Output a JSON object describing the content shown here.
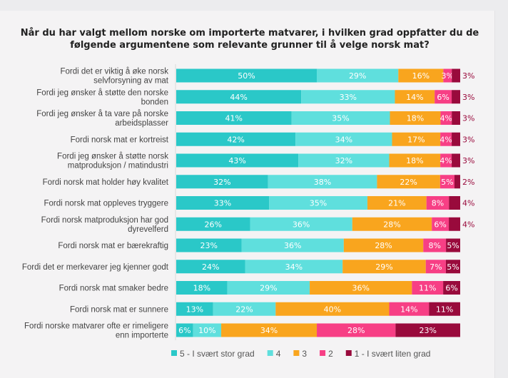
{
  "chart_data": {
    "type": "bar",
    "orientation": "horizontal",
    "stacked": "100%",
    "title": "Når du har valgt mellom norske om importerte matvarer, i hvilken grad oppfatter du de følgende argumentene som relevante grunner til å velge norsk mat?",
    "categories": [
      [
        "Fordi det er viktig å øke norsk",
        "selvforsyning av mat"
      ],
      [
        "Fordi jeg ønsker å støtte den norske",
        "bonden"
      ],
      [
        "Fordi jeg ønsker å ta vare på norske",
        "arbeidsplasser"
      ],
      [
        "Fordi norsk mat er kortreist"
      ],
      [
        "Fordi jeg ønsker å støtte norsk",
        "matproduksjon / matindustri"
      ],
      [
        "Fordi norsk mat holder høy kvalitet"
      ],
      [
        "Fordi norsk mat oppleves tryggere"
      ],
      [
        "Fordi norsk matproduksjon har god",
        "dyrevelferd"
      ],
      [
        "Fordi norsk mat er bærekraftig"
      ],
      [
        "Fordi det er merkevarer jeg kjenner godt"
      ],
      [
        "Fordi norsk mat smaker bedre"
      ],
      [
        "Fordi norsk mat er sunnere"
      ],
      [
        "Fordi norske matvarer ofte er rimeligere",
        "enn importerte"
      ]
    ],
    "series": [
      {
        "name": "5 - I svært stor grad",
        "color": "#2ac8c8",
        "values": [
          50,
          44,
          41,
          42,
          43,
          32,
          33,
          26,
          23,
          24,
          18,
          13,
          6
        ]
      },
      {
        "name": "4",
        "color": "#5fdfdd",
        "values": [
          29,
          33,
          35,
          34,
          32,
          38,
          35,
          36,
          36,
          34,
          29,
          22,
          10
        ]
      },
      {
        "name": "3",
        "color": "#f9a51e",
        "values": [
          16,
          14,
          18,
          17,
          18,
          22,
          21,
          28,
          28,
          29,
          36,
          40,
          34
        ]
      },
      {
        "name": "2",
        "color": "#f73f85",
        "values": [
          3,
          6,
          4,
          4,
          4,
          5,
          8,
          6,
          8,
          7,
          11,
          14,
          28
        ]
      },
      {
        "name": "1 - I svært liten grad",
        "color": "#990a3c",
        "values": [
          3,
          3,
          3,
          3,
          3,
          2,
          4,
          4,
          5,
          5,
          6,
          11,
          23
        ]
      }
    ],
    "value_suffix": "%",
    "legend_position": "bottom",
    "grid": false
  }
}
